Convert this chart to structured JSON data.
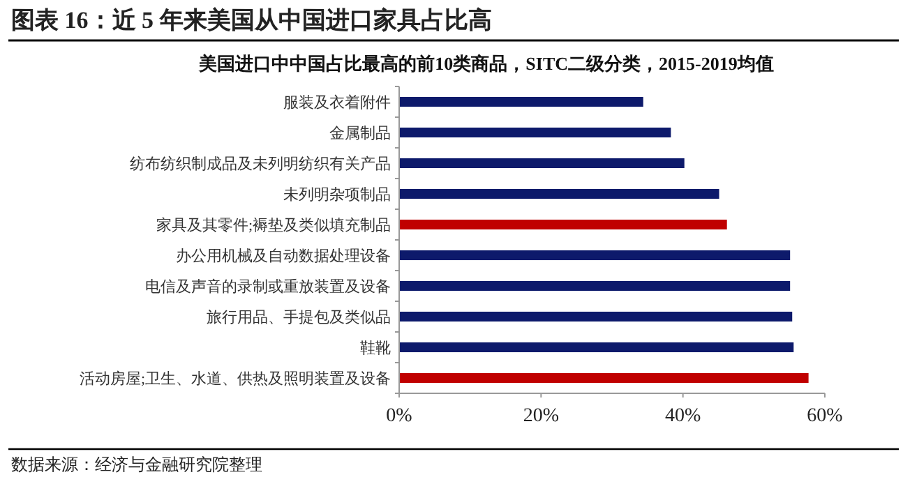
{
  "chart_data": {
    "type": "bar",
    "orientation": "horizontal",
    "title": "图表 16：近 5 年来美国从中国进口家具占比高",
    "subtitle": "美国进口中中国占比最高的前10类商品，SITC二级分类，2015-2019均值",
    "categories": [
      "服装及衣着附件",
      "金属制品",
      "纺布纺织制成品及未列明纺织有关产品",
      "未列明杂项制品",
      "家具及其零件;褥垫及类似填充制品",
      "办公用机械及自动数据处理设备",
      "电信及声音的录制或重放装置及设备",
      "旅行用品、手提包及类似品",
      "鞋靴",
      "活动房屋;卫生、水道、供热及照明装置及设备"
    ],
    "values": [
      34.4,
      38.3,
      40.2,
      45.1,
      46.2,
      55.1,
      55.1,
      55.4,
      55.6,
      57.7
    ],
    "colors": [
      "#0d1a6b",
      "#0d1a6b",
      "#0d1a6b",
      "#0d1a6b",
      "#c00000",
      "#0d1a6b",
      "#0d1a6b",
      "#0d1a6b",
      "#0d1a6b",
      "#c00000"
    ],
    "xlim": [
      0,
      60
    ],
    "xticks": [
      {
        "value": 0,
        "label": "0%"
      },
      {
        "value": 20,
        "label": "20%"
      },
      {
        "value": 40,
        "label": "40%"
      },
      {
        "value": 60,
        "label": "60%"
      }
    ],
    "grid": false,
    "annotations": [
      "数据来源：经济与金融研究院整理"
    ]
  }
}
